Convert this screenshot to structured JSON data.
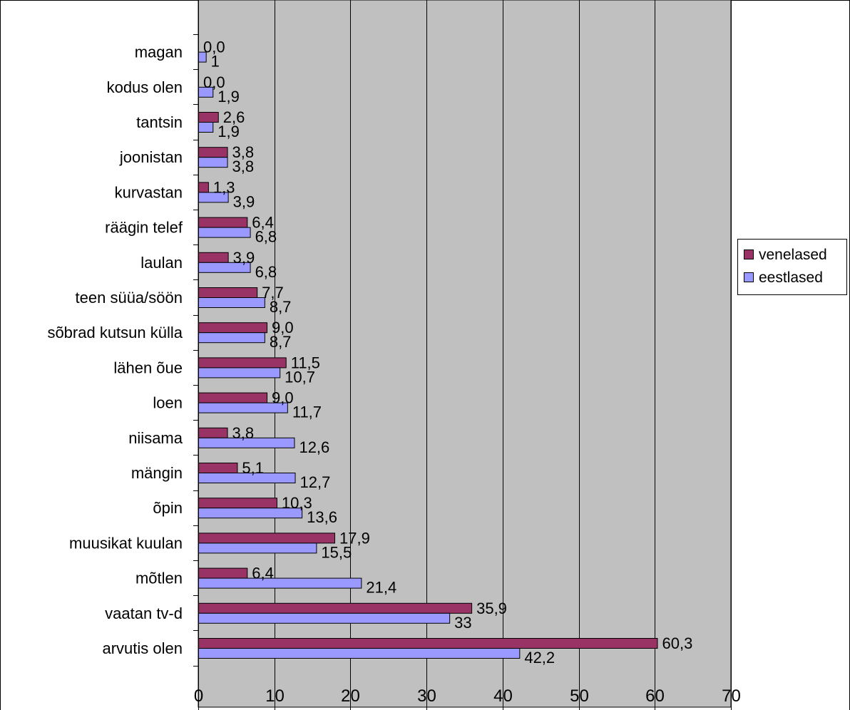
{
  "chart_data": {
    "type": "bar",
    "orientation": "horizontal",
    "categories": [
      "magan",
      "kodus olen",
      "tantsin",
      "joonistan",
      "kurvastan",
      "räägin telef",
      "laulan",
      "teen süüa/söön",
      "sõbrad kutsun külla",
      "lähen õue",
      "loen",
      "niisama",
      "mängin",
      "õpin",
      "muusikat kuulan",
      "mõtlen",
      "vaatan tv-d",
      "arvutis olen"
    ],
    "series": [
      {
        "name": "venelased",
        "color": "#993366",
        "values": [
          0.0,
          0.0,
          2.6,
          3.8,
          1.3,
          6.4,
          3.9,
          7.7,
          9.0,
          11.5,
          9.0,
          3.8,
          5.1,
          10.3,
          17.9,
          6.4,
          35.9,
          60.3
        ],
        "labels": [
          "0,0",
          "0,0",
          "2,6",
          "3,8",
          "1,3",
          "6,4",
          "3,9",
          "7,7",
          "9,0",
          "11,5",
          "9,0",
          "3,8",
          "5,1",
          "10,3",
          "17,9",
          "6,4",
          "35,9",
          "60,3"
        ]
      },
      {
        "name": "eestlased",
        "color": "#9999ff",
        "values": [
          1,
          1.9,
          1.9,
          3.8,
          3.9,
          6.8,
          6.8,
          8.7,
          8.7,
          10.7,
          11.7,
          12.6,
          12.7,
          13.6,
          15.5,
          21.4,
          33,
          42.2
        ],
        "labels": [
          "1",
          "1,9",
          "1,9",
          "3,8",
          "3,9",
          "6,8",
          "6,8",
          "8,7",
          "8,7",
          "10,7",
          "11,7",
          "12,6",
          "12,7",
          "13,6",
          "15,5",
          "21,4",
          "33",
          "42,2"
        ]
      }
    ],
    "xlim": [
      0,
      70
    ],
    "xticks": [
      0,
      10,
      20,
      30,
      40,
      50,
      60,
      70
    ],
    "xtick_labels": [
      "0",
      "10",
      "20",
      "30",
      "40",
      "50",
      "60",
      "70"
    ],
    "grid": true,
    "plot_background": "#c0c0c0",
    "legend_position": "right"
  }
}
